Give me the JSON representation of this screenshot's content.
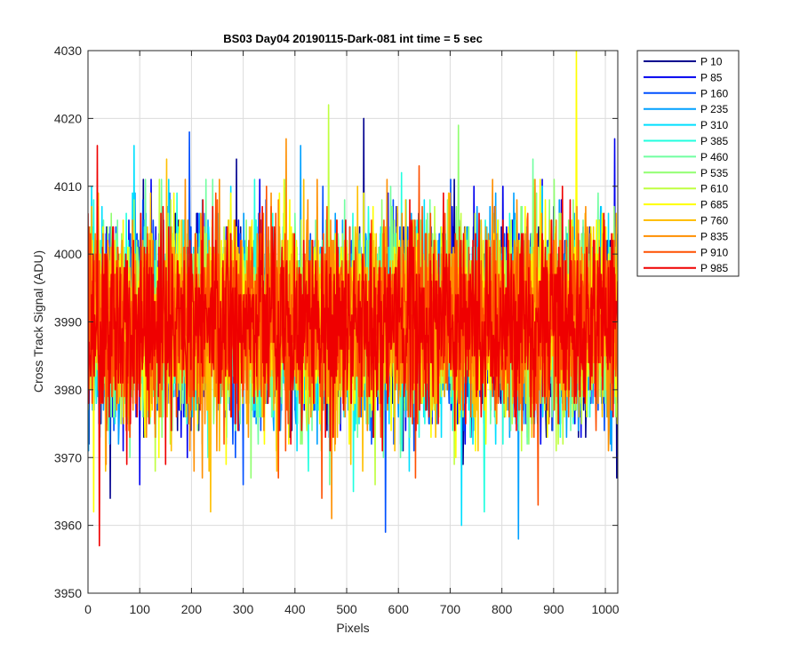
{
  "chart_data": {
    "type": "line",
    "title": "BS03 Day04 20190115-Dark-081 int time = 5 sec",
    "xlabel": "Pixels",
    "ylabel": "Cross Track Signal (ADU)",
    "xlim": [
      0,
      1024
    ],
    "ylim": [
      3950,
      4030
    ],
    "xticks": [
      0,
      100,
      200,
      300,
      400,
      500,
      600,
      700,
      800,
      900,
      1000
    ],
    "yticks": [
      3950,
      3960,
      3970,
      3980,
      3990,
      4000,
      4010,
      4020,
      4030
    ],
    "grid": true,
    "legend_position": "outside-right",
    "noise_summary": {
      "mean": 3990,
      "std": 7
    },
    "series": [
      {
        "name": "P 10",
        "color": "#00008f",
        "extremes": [
          {
            "x": 43,
            "y": 3964
          },
          {
            "x": 287,
            "y": 4014
          },
          {
            "x": 533,
            "y": 4020
          }
        ]
      },
      {
        "name": "P 85",
        "color": "#0000ef",
        "extremes": [
          {
            "x": 100,
            "y": 3966
          },
          {
            "x": 1018,
            "y": 4017
          }
        ]
      },
      {
        "name": "P 160",
        "color": "#0050ff",
        "extremes": [
          {
            "x": 575,
            "y": 3959
          },
          {
            "x": 196,
            "y": 4018
          }
        ]
      },
      {
        "name": "P 235",
        "color": "#00a0ff",
        "extremes": [
          {
            "x": 832,
            "y": 3958
          },
          {
            "x": 411,
            "y": 4016
          }
        ]
      },
      {
        "name": "P 310",
        "color": "#00dfff",
        "extremes": [
          {
            "x": 722,
            "y": 3960
          },
          {
            "x": 89,
            "y": 4016
          }
        ]
      },
      {
        "name": "P 385",
        "color": "#20ffdf",
        "extremes": [
          {
            "x": 766,
            "y": 3962
          },
          {
            "x": 606,
            "y": 4012
          }
        ]
      },
      {
        "name": "P 460",
        "color": "#70ffa0",
        "extremes": [
          {
            "x": 467,
            "y": 3966
          },
          {
            "x": 860,
            "y": 4014
          }
        ]
      },
      {
        "name": "P 535",
        "color": "#90ff70",
        "extremes": [
          {
            "x": 315,
            "y": 3967
          },
          {
            "x": 716,
            "y": 4019
          }
        ]
      },
      {
        "name": "P 610",
        "color": "#bfff40",
        "extremes": [
          {
            "x": 555,
            "y": 3966
          },
          {
            "x": 465,
            "y": 4022
          }
        ]
      },
      {
        "name": "P 685",
        "color": "#ffff00",
        "extremes": [
          {
            "x": 11,
            "y": 3962
          },
          {
            "x": 944,
            "y": 4030
          }
        ]
      },
      {
        "name": "P 760",
        "color": "#ffbf00",
        "extremes": [
          {
            "x": 237,
            "y": 3962
          },
          {
            "x": 152,
            "y": 4014
          }
        ]
      },
      {
        "name": "P 835",
        "color": "#ff8f00",
        "extremes": [
          {
            "x": 471,
            "y": 3961
          },
          {
            "x": 383,
            "y": 4017
          }
        ]
      },
      {
        "name": "P 910",
        "color": "#ff5000",
        "extremes": [
          {
            "x": 870,
            "y": 3963
          },
          {
            "x": 640,
            "y": 4013
          }
        ]
      },
      {
        "name": "P 985",
        "color": "#ef0000",
        "extremes": [
          {
            "x": 22,
            "y": 3957
          },
          {
            "x": 18,
            "y": 4016
          }
        ]
      }
    ]
  }
}
